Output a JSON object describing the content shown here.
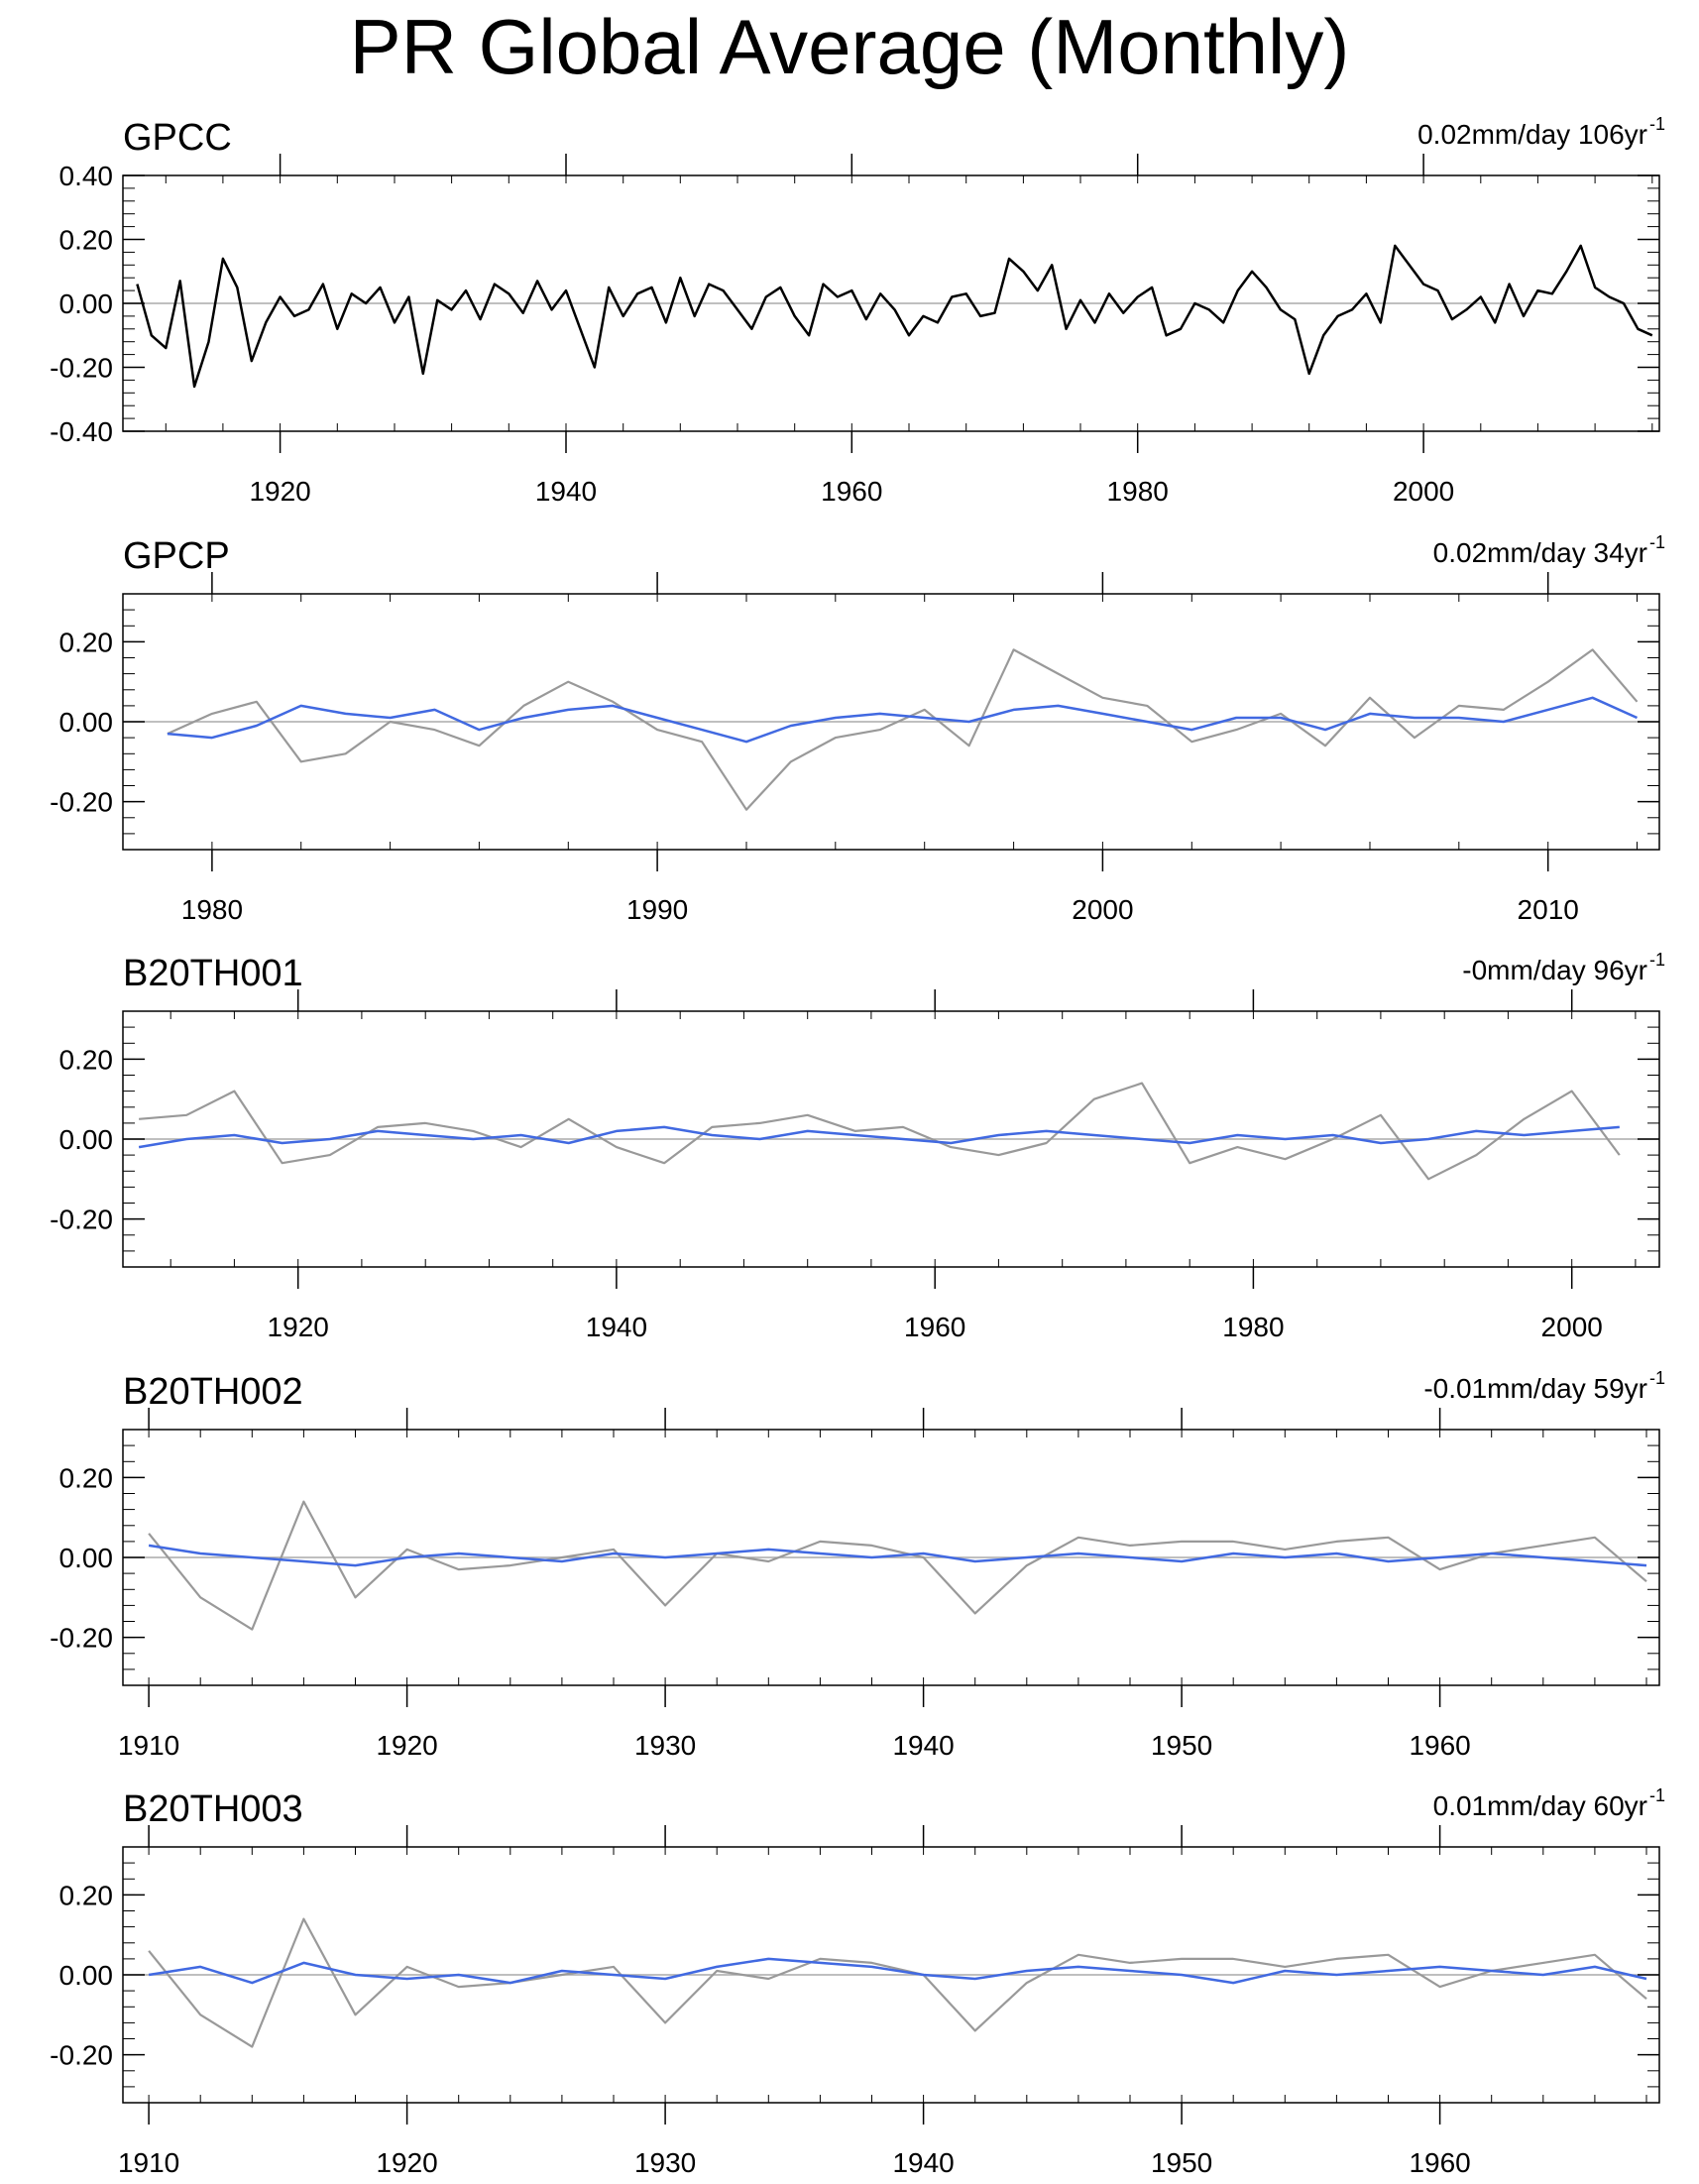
{
  "title": "PR Global Average (Monthly)",
  "colors": {
    "observed": "#000000",
    "reference": "#999999",
    "model": "#4169e1",
    "frame": "#000000",
    "zeroline": "#aaaaaa"
  },
  "chart_data": [
    {
      "type": "line",
      "name": "GPCC",
      "label": "GPCC",
      "trend_label": "0.02mm/day 106yr",
      "trend_superscript": "-1",
      "xlim": [
        1909.0,
        2016.5
      ],
      "ylim": [
        -0.4,
        0.4
      ],
      "xticks": [
        1920,
        1940,
        1960,
        1980,
        2000
      ],
      "yticks": [
        -0.4,
        -0.2,
        0.0,
        0.2,
        0.4
      ],
      "ytick_labels": [
        "-0.40",
        "-0.20",
        "0.00",
        "0.20",
        "0.40"
      ],
      "series": [
        {
          "name": "GPCC",
          "role": "observed",
          "x": [
            1910,
            1911,
            1912,
            1913,
            1914,
            1915,
            1916,
            1917,
            1918,
            1919,
            1920,
            1921,
            1922,
            1923,
            1924,
            1925,
            1926,
            1927,
            1928,
            1929,
            1930,
            1931,
            1932,
            1933,
            1934,
            1935,
            1936,
            1937,
            1938,
            1939,
            1940,
            1941,
            1942,
            1943,
            1944,
            1945,
            1946,
            1947,
            1948,
            1949,
            1950,
            1951,
            1952,
            1953,
            1954,
            1955,
            1956,
            1957,
            1958,
            1959,
            1960,
            1961,
            1962,
            1963,
            1964,
            1965,
            1966,
            1967,
            1968,
            1969,
            1970,
            1971,
            1972,
            1973,
            1974,
            1975,
            1976,
            1977,
            1978,
            1979,
            1980,
            1981,
            1982,
            1983,
            1984,
            1985,
            1986,
            1987,
            1988,
            1989,
            1990,
            1991,
            1992,
            1993,
            1994,
            1995,
            1996,
            1997,
            1998,
            1999,
            2000,
            2001,
            2002,
            2003,
            2004,
            2005,
            2006,
            2007,
            2008,
            2009,
            2010,
            2011,
            2012,
            2013,
            2014,
            2015,
            2016
          ],
          "y": [
            0.06,
            -0.1,
            -0.14,
            0.07,
            -0.26,
            -0.12,
            0.14,
            0.05,
            -0.18,
            -0.06,
            0.02,
            -0.04,
            -0.02,
            0.06,
            -0.08,
            0.03,
            0.0,
            0.05,
            -0.06,
            0.02,
            -0.22,
            0.01,
            -0.02,
            0.04,
            -0.05,
            0.06,
            0.03,
            -0.03,
            0.07,
            -0.02,
            0.04,
            -0.08,
            -0.2,
            0.05,
            -0.04,
            0.03,
            0.05,
            -0.06,
            0.08,
            -0.04,
            0.06,
            0.04,
            -0.02,
            -0.08,
            0.02,
            0.05,
            -0.04,
            -0.1,
            0.06,
            0.02,
            0.04,
            -0.05,
            0.03,
            -0.02,
            -0.1,
            -0.04,
            -0.06,
            0.02,
            0.03,
            -0.04,
            -0.03,
            0.14,
            0.1,
            0.04,
            0.12,
            -0.08,
            0.01,
            -0.06,
            0.03,
            -0.03,
            0.02,
            0.05,
            -0.1,
            -0.08,
            0.0,
            -0.02,
            -0.06,
            0.04,
            0.1,
            0.05,
            -0.02,
            -0.05,
            -0.22,
            -0.1,
            -0.04,
            -0.02,
            0.03,
            -0.06,
            0.18,
            0.12,
            0.06,
            0.04,
            -0.05,
            -0.02,
            0.02,
            -0.06,
            0.06,
            -0.04,
            0.04,
            0.03,
            0.1,
            0.18,
            0.05,
            0.02,
            0.0,
            -0.08,
            -0.1
          ]
        }
      ]
    },
    {
      "type": "line",
      "name": "GPCP",
      "label": "GPCP",
      "trend_label": "0.02mm/day 34yr",
      "trend_superscript": "-1",
      "xlim": [
        1978.0,
        2012.5
      ],
      "ylim": [
        -0.32,
        0.32
      ],
      "xticks": [
        1980,
        1990,
        2000,
        2010
      ],
      "yticks": [
        -0.2,
        0.0,
        0.2
      ],
      "ytick_labels": [
        "-0.20",
        "0.00",
        "0.20"
      ],
      "series": [
        {
          "name": "GPCC",
          "role": "reference",
          "x": [
            1979,
            1980,
            1981,
            1982,
            1983,
            1984,
            1985,
            1986,
            1987,
            1988,
            1989,
            1990,
            1991,
            1992,
            1993,
            1994,
            1995,
            1996,
            1997,
            1998,
            1999,
            2000,
            2001,
            2002,
            2003,
            2004,
            2005,
            2006,
            2007,
            2008,
            2009,
            2010,
            2011,
            2012
          ],
          "y": [
            -0.03,
            0.02,
            0.05,
            -0.1,
            -0.08,
            0.0,
            -0.02,
            -0.06,
            0.04,
            0.1,
            0.05,
            -0.02,
            -0.05,
            -0.22,
            -0.1,
            -0.04,
            -0.02,
            0.03,
            -0.06,
            0.18,
            0.12,
            0.06,
            0.04,
            -0.05,
            -0.02,
            0.02,
            -0.06,
            0.06,
            -0.04,
            0.04,
            0.03,
            0.1,
            0.18,
            0.05
          ]
        },
        {
          "name": "GPCP",
          "role": "model",
          "x": [
            1979,
            1980,
            1981,
            1982,
            1983,
            1984,
            1985,
            1986,
            1987,
            1988,
            1989,
            1990,
            1991,
            1992,
            1993,
            1994,
            1995,
            1996,
            1997,
            1998,
            1999,
            2000,
            2001,
            2002,
            2003,
            2004,
            2005,
            2006,
            2007,
            2008,
            2009,
            2010,
            2011,
            2012
          ],
          "y": [
            -0.03,
            -0.04,
            -0.01,
            0.04,
            0.02,
            0.01,
            0.03,
            -0.02,
            0.01,
            0.03,
            0.04,
            0.01,
            -0.02,
            -0.05,
            -0.01,
            0.01,
            0.02,
            0.01,
            0.0,
            0.03,
            0.04,
            0.02,
            0.0,
            -0.02,
            0.01,
            0.01,
            -0.02,
            0.02,
            0.01,
            0.01,
            0.0,
            0.03,
            0.06,
            0.01
          ]
        }
      ]
    },
    {
      "type": "line",
      "name": "B20TH001",
      "label": "B20TH001",
      "trend_label": "-0mm/day 96yr",
      "trend_superscript": "-1",
      "xlim": [
        1909.0,
        2005.5
      ],
      "ylim": [
        -0.32,
        0.32
      ],
      "xticks": [
        1920,
        1940,
        1960,
        1980,
        2000
      ],
      "yticks": [
        -0.2,
        0.0,
        0.2
      ],
      "ytick_labels": [
        "-0.20",
        "0.00",
        "0.20"
      ],
      "series": [
        {
          "name": "GPCC",
          "role": "reference",
          "x": [
            1910,
            1913,
            1916,
            1919,
            1922,
            1925,
            1928,
            1931,
            1934,
            1937,
            1940,
            1943,
            1946,
            1949,
            1952,
            1955,
            1958,
            1961,
            1964,
            1967,
            1970,
            1973,
            1976,
            1979,
            1982,
            1985,
            1988,
            1991,
            1994,
            1997,
            2000,
            2003
          ],
          "y": [
            0.05,
            0.06,
            0.12,
            -0.06,
            -0.04,
            0.03,
            0.04,
            0.02,
            -0.02,
            0.05,
            -0.02,
            -0.06,
            0.03,
            0.04,
            0.06,
            0.02,
            0.03,
            -0.02,
            -0.04,
            -0.01,
            0.1,
            0.14,
            -0.06,
            -0.02,
            -0.05,
            0.0,
            0.06,
            -0.1,
            -0.04,
            0.05,
            0.12,
            -0.04
          ]
        },
        {
          "name": "B20TH001",
          "role": "model",
          "x": [
            1910,
            1913,
            1916,
            1919,
            1922,
            1925,
            1928,
            1931,
            1934,
            1937,
            1940,
            1943,
            1946,
            1949,
            1952,
            1955,
            1958,
            1961,
            1964,
            1967,
            1970,
            1973,
            1976,
            1979,
            1982,
            1985,
            1988,
            1991,
            1994,
            1997,
            2000,
            2003
          ],
          "y": [
            -0.02,
            0.0,
            0.01,
            -0.01,
            0.0,
            0.02,
            0.01,
            0.0,
            0.01,
            -0.01,
            0.02,
            0.03,
            0.01,
            0.0,
            0.02,
            0.01,
            0.0,
            -0.01,
            0.01,
            0.02,
            0.01,
            0.0,
            -0.01,
            0.01,
            0.0,
            0.01,
            -0.01,
            0.0,
            0.02,
            0.01,
            0.02,
            0.03
          ]
        }
      ]
    },
    {
      "type": "line",
      "name": "B20TH002",
      "label": "B20TH002",
      "trend_label": "-0.01mm/day 59yr",
      "trend_superscript": "-1",
      "xlim": [
        1909.0,
        1968.5
      ],
      "ylim": [
        -0.32,
        0.32
      ],
      "xticks": [
        1910,
        1920,
        1930,
        1940,
        1950,
        1960
      ],
      "yticks": [
        -0.2,
        0.0,
        0.2
      ],
      "ytick_labels": [
        "-0.20",
        "0.00",
        "0.20"
      ],
      "series": [
        {
          "name": "GPCC",
          "role": "reference",
          "x": [
            1910,
            1912,
            1914,
            1916,
            1918,
            1920,
            1922,
            1924,
            1926,
            1928,
            1930,
            1932,
            1934,
            1936,
            1938,
            1940,
            1942,
            1944,
            1946,
            1948,
            1950,
            1952,
            1954,
            1956,
            1958,
            1960,
            1962,
            1964,
            1966,
            1968
          ],
          "y": [
            0.06,
            -0.1,
            -0.18,
            0.14,
            -0.1,
            0.02,
            -0.03,
            -0.02,
            0.0,
            0.02,
            -0.12,
            0.01,
            -0.01,
            0.04,
            0.03,
            0.0,
            -0.14,
            -0.02,
            0.05,
            0.03,
            0.04,
            0.04,
            0.02,
            0.04,
            0.05,
            -0.03,
            0.01,
            0.03,
            0.05,
            -0.06
          ]
        },
        {
          "name": "B20TH002",
          "role": "model",
          "x": [
            1910,
            1912,
            1914,
            1916,
            1918,
            1920,
            1922,
            1924,
            1926,
            1928,
            1930,
            1932,
            1934,
            1936,
            1938,
            1940,
            1942,
            1944,
            1946,
            1948,
            1950,
            1952,
            1954,
            1956,
            1958,
            1960,
            1962,
            1964,
            1966,
            1968
          ],
          "y": [
            0.03,
            0.01,
            0.0,
            -0.01,
            -0.02,
            0.0,
            0.01,
            0.0,
            -0.01,
            0.01,
            0.0,
            0.01,
            0.02,
            0.01,
            0.0,
            0.01,
            -0.01,
            0.0,
            0.01,
            0.0,
            -0.01,
            0.01,
            0.0,
            0.01,
            -0.01,
            0.0,
            0.01,
            0.0,
            -0.01,
            -0.02
          ]
        }
      ]
    },
    {
      "type": "line",
      "name": "B20TH003",
      "label": "B20TH003",
      "trend_label": "0.01mm/day 60yr",
      "trend_superscript": "-1",
      "xlim": [
        1909.0,
        1968.5
      ],
      "ylim": [
        -0.32,
        0.32
      ],
      "xticks": [
        1910,
        1920,
        1930,
        1940,
        1950,
        1960
      ],
      "yticks": [
        -0.2,
        0.0,
        0.2
      ],
      "ytick_labels": [
        "-0.20",
        "0.00",
        "0.20"
      ],
      "series": [
        {
          "name": "GPCC",
          "role": "reference",
          "x": [
            1910,
            1912,
            1914,
            1916,
            1918,
            1920,
            1922,
            1924,
            1926,
            1928,
            1930,
            1932,
            1934,
            1936,
            1938,
            1940,
            1942,
            1944,
            1946,
            1948,
            1950,
            1952,
            1954,
            1956,
            1958,
            1960,
            1962,
            1964,
            1966,
            1968
          ],
          "y": [
            0.06,
            -0.1,
            -0.18,
            0.14,
            -0.1,
            0.02,
            -0.03,
            -0.02,
            0.0,
            0.02,
            -0.12,
            0.01,
            -0.01,
            0.04,
            0.03,
            0.0,
            -0.14,
            -0.02,
            0.05,
            0.03,
            0.04,
            0.04,
            0.02,
            0.04,
            0.05,
            -0.03,
            0.01,
            0.03,
            0.05,
            -0.06
          ]
        },
        {
          "name": "B20TH003",
          "role": "model",
          "x": [
            1910,
            1912,
            1914,
            1916,
            1918,
            1920,
            1922,
            1924,
            1926,
            1928,
            1930,
            1932,
            1934,
            1936,
            1938,
            1940,
            1942,
            1944,
            1946,
            1948,
            1950,
            1952,
            1954,
            1956,
            1958,
            1960,
            1962,
            1964,
            1966,
            1968
          ],
          "y": [
            0.0,
            0.02,
            -0.02,
            0.03,
            0.0,
            -0.01,
            0.0,
            -0.02,
            0.01,
            0.0,
            -0.01,
            0.02,
            0.04,
            0.03,
            0.02,
            0.0,
            -0.01,
            0.01,
            0.02,
            0.01,
            0.0,
            -0.02,
            0.01,
            0.0,
            0.01,
            0.02,
            0.01,
            0.0,
            0.02,
            -0.01
          ]
        }
      ]
    }
  ]
}
